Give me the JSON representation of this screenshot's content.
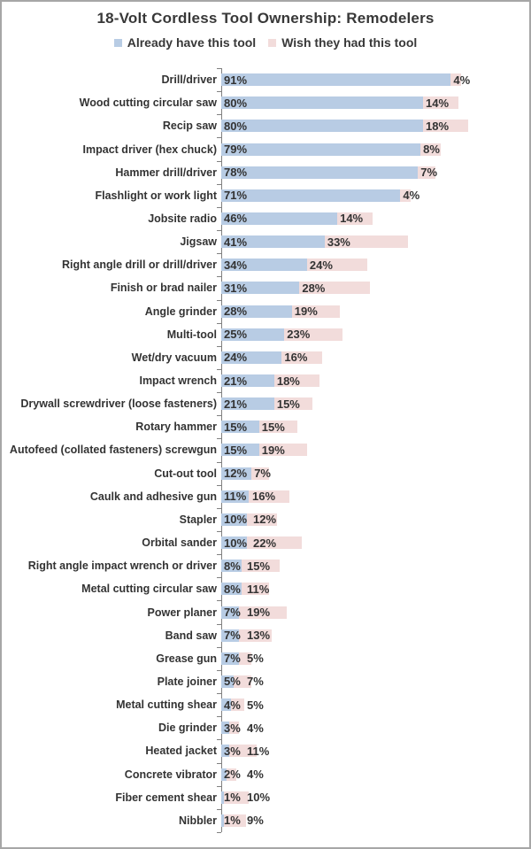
{
  "title": "18-Volt Cordless Tool Ownership: Remodelers",
  "legend": {
    "items": [
      {
        "label": "Already have this tool",
        "color": "#b8cce4"
      },
      {
        "label": "Wish they had this tool",
        "color": "#f2dcdb"
      }
    ]
  },
  "style": {
    "axis_color": "#808080",
    "text_color": "#333333",
    "background": "#ffffff",
    "border_color": "#a6a6a6"
  },
  "chart_data": {
    "type": "bar",
    "orientation": "horizontal",
    "stacked": true,
    "title": "18-Volt Cordless Tool Ownership: Remodelers",
    "value_format": "percent",
    "data_labels": "inside-base",
    "legend_position": "top",
    "grid": false,
    "xlim": [
      0,
      125
    ],
    "categories": [
      "Drill/driver",
      "Wood cutting circular saw",
      "Recip saw",
      "Impact driver (hex chuck)",
      "Hammer drill/driver",
      "Flashlight or work light",
      "Jobsite radio",
      "Jigsaw",
      "Right angle drill or drill/driver",
      "Finish or brad nailer",
      "Angle grinder",
      "Multi-tool",
      "Wet/dry vacuum",
      "Impact wrench",
      "Drywall screwdriver (loose fasteners)",
      "Rotary hammer",
      "Autofeed (collated fasteners) screwgun",
      "Cut-out tool",
      "Caulk and adhesive gun",
      "Stapler",
      "Orbital sander",
      "Right angle impact wrench or driver",
      "Metal cutting circular saw",
      "Power planer",
      "Band saw",
      "Grease gun",
      "Plate joiner",
      "Metal cutting shear",
      "Die grinder",
      "Heated jacket",
      "Concrete vibrator",
      "Fiber cement shear",
      "Nibbler"
    ],
    "series": [
      {
        "name": "Already have this tool",
        "color": "#b8cce4",
        "values": [
          91,
          80,
          80,
          79,
          78,
          71,
          46,
          41,
          34,
          31,
          28,
          25,
          24,
          21,
          21,
          15,
          15,
          12,
          11,
          10,
          10,
          8,
          8,
          7,
          7,
          7,
          5,
          4,
          3,
          3,
          2,
          1,
          1
        ]
      },
      {
        "name": "Wish they had this tool",
        "color": "#f2dcdb",
        "values": [
          4,
          14,
          18,
          8,
          7,
          4,
          14,
          33,
          24,
          28,
          19,
          23,
          16,
          18,
          15,
          15,
          19,
          7,
          16,
          12,
          22,
          15,
          11,
          19,
          13,
          5,
          7,
          5,
          4,
          11,
          4,
          10,
          9
        ]
      }
    ]
  }
}
